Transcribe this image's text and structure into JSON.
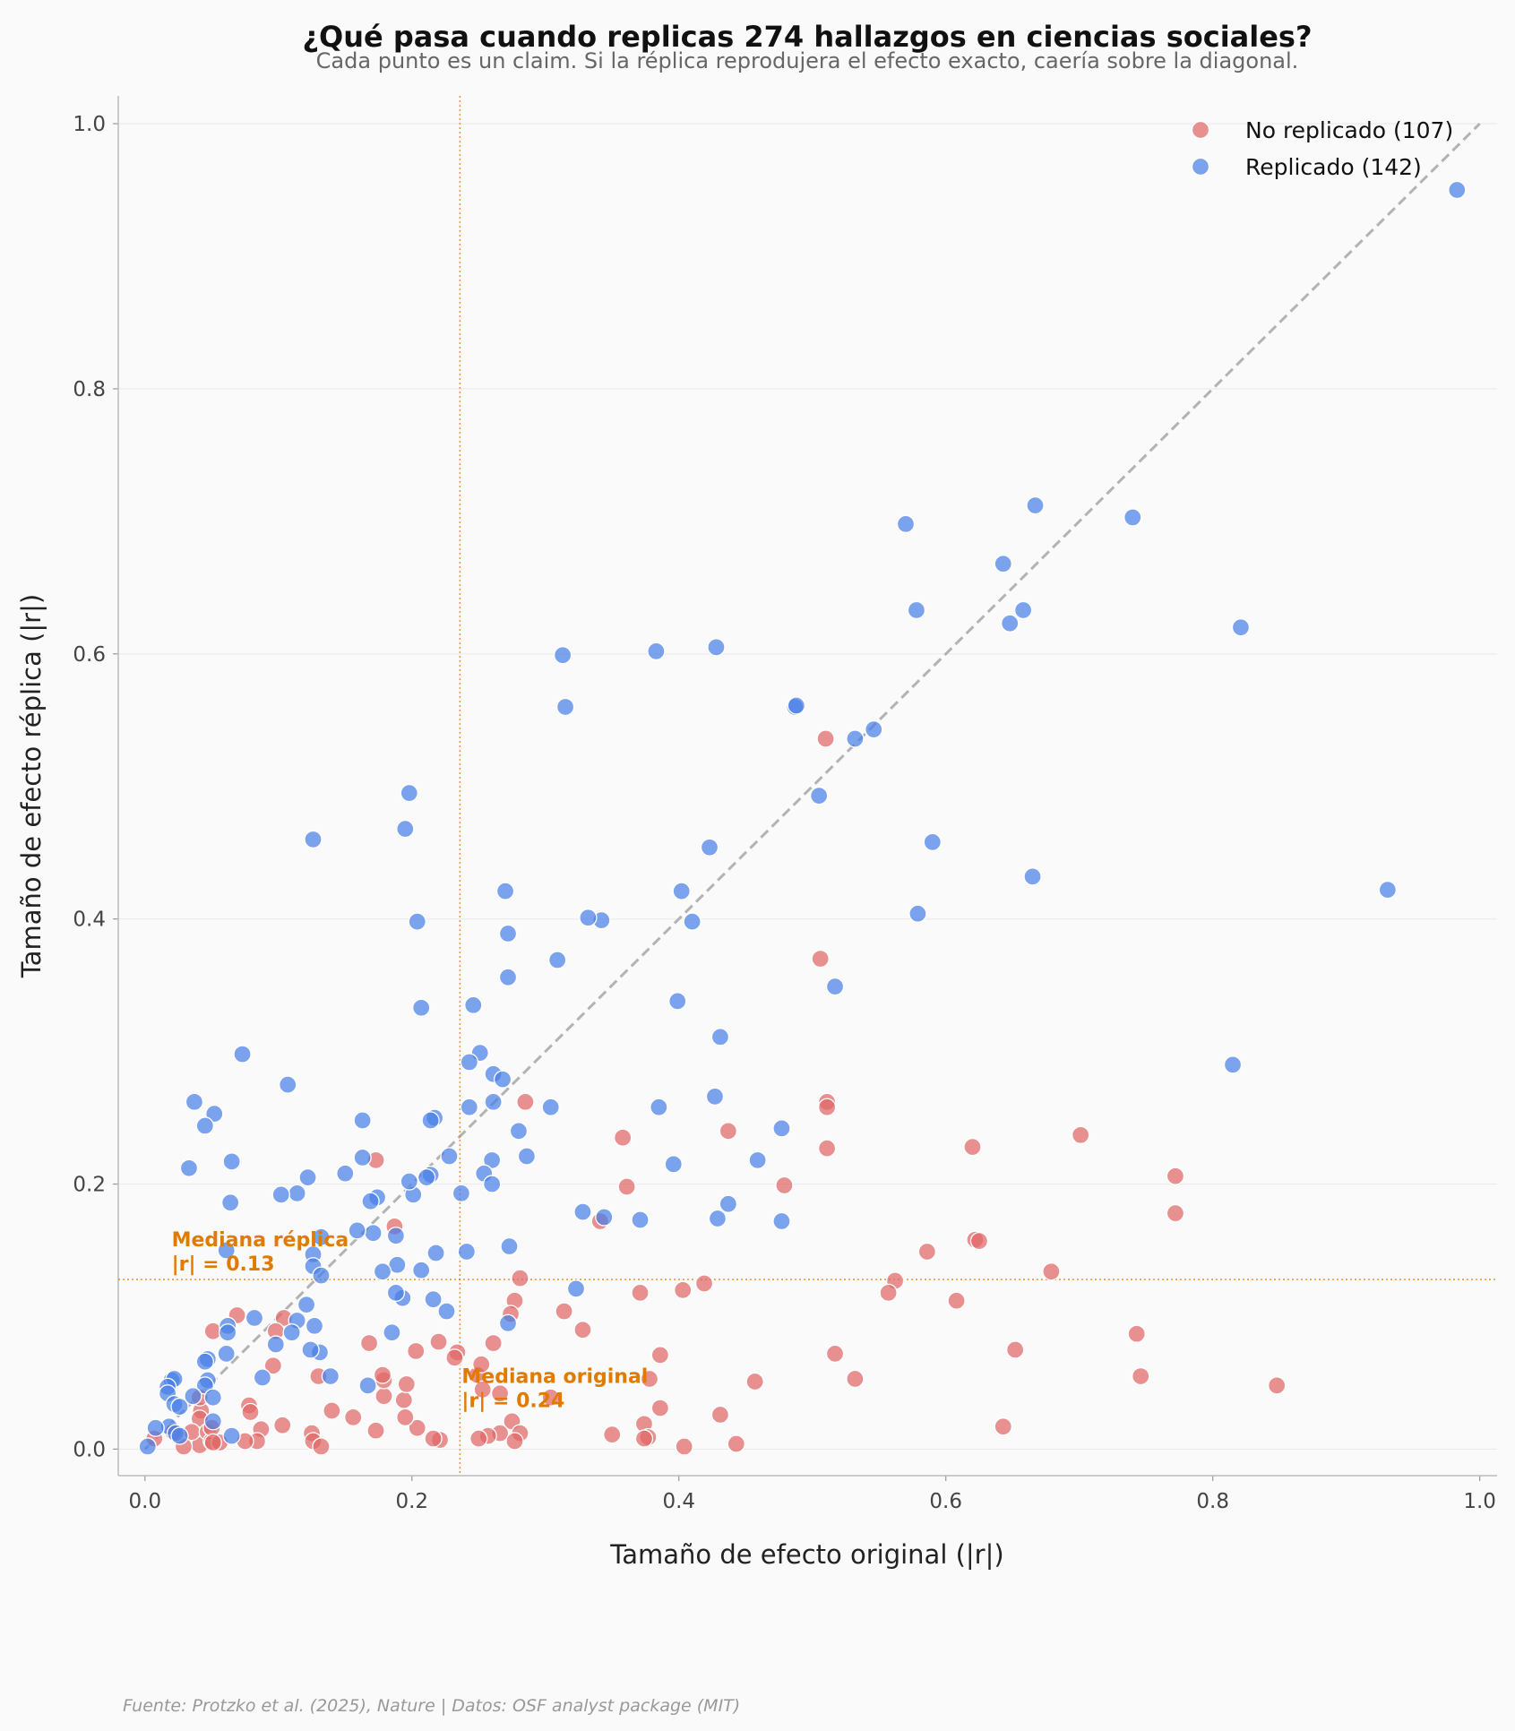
{
  "chart_data": {
    "type": "scatter",
    "title": "¿Qué pasa cuando replicas 274 hallazgos en ciencias sociales?",
    "subtitle": "Cada punto es un claim. Si la réplica reprodujera el efecto exacto, caería sobre la diagonal.",
    "xlabel": "Tamaño de efecto original (|r|)",
    "ylabel": "Tamaño de efecto réplica (|r|)",
    "xlim": [
      -0.02,
      1.013
    ],
    "ylim": [
      -0.02,
      1.021
    ],
    "xticks": [
      0.0,
      0.2,
      0.4,
      0.6,
      0.8,
      1.0
    ],
    "yticks": [
      0.0,
      0.2,
      0.4,
      0.6,
      0.8,
      1.0
    ],
    "xtick_labels": [
      "0.0",
      "0.2",
      "0.4",
      "0.6",
      "0.8",
      "1.0"
    ],
    "ytick_labels": [
      "0.0",
      "0.2",
      "0.4",
      "0.6",
      "0.8",
      "1.0"
    ],
    "grid": true,
    "legend_position": "top-right",
    "diagonal": {
      "from": [
        0,
        0
      ],
      "to": [
        1,
        1
      ],
      "color": "#b3b3b3"
    },
    "medians": {
      "x": 0.236,
      "y": 0.128,
      "color": "#e07b00",
      "x_label_1": "Mediana original",
      "x_label_2": "|r| = 0.24",
      "y_label_1": "Mediana réplica",
      "y_label_2": "|r| = 0.13"
    },
    "footer": "Fuente: Protzko et al. (2025), Nature | Datos: OSF analyst package (MIT)",
    "series": [
      {
        "name": "No replicado (107)",
        "color": "#e06666",
        "points": [
          [
            0.51,
            0.536
          ],
          [
            0.506,
            0.37
          ],
          [
            0.511,
            0.262
          ],
          [
            0.511,
            0.258
          ],
          [
            0.511,
            0.227
          ],
          [
            0.437,
            0.24
          ],
          [
            0.358,
            0.235
          ],
          [
            0.361,
            0.198
          ],
          [
            0.341,
            0.172
          ],
          [
            0.701,
            0.237
          ],
          [
            0.62,
            0.228
          ],
          [
            0.772,
            0.206
          ],
          [
            0.772,
            0.178
          ],
          [
            0.622,
            0.158
          ],
          [
            0.625,
            0.157
          ],
          [
            0.586,
            0.149
          ],
          [
            0.679,
            0.134
          ],
          [
            0.562,
            0.127
          ],
          [
            0.557,
            0.118
          ],
          [
            0.608,
            0.112
          ],
          [
            0.479,
            0.199
          ],
          [
            0.419,
            0.125
          ],
          [
            0.403,
            0.12
          ],
          [
            0.371,
            0.118
          ],
          [
            0.285,
            0.262
          ],
          [
            0.173,
            0.218
          ],
          [
            0.281,
            0.129
          ],
          [
            0.277,
            0.112
          ],
          [
            0.274,
            0.102
          ],
          [
            0.314,
            0.104
          ],
          [
            0.328,
            0.09
          ],
          [
            0.187,
            0.168
          ],
          [
            0.743,
            0.087
          ],
          [
            0.652,
            0.075
          ],
          [
            0.517,
            0.072
          ],
          [
            0.386,
            0.071
          ],
          [
            0.746,
            0.055
          ],
          [
            0.532,
            0.053
          ],
          [
            0.848,
            0.048
          ],
          [
            0.457,
            0.051
          ],
          [
            0.378,
            0.053
          ],
          [
            0.643,
            0.017
          ],
          [
            0.431,
            0.026
          ],
          [
            0.386,
            0.031
          ],
          [
            0.374,
            0.019
          ],
          [
            0.377,
            0.009
          ],
          [
            0.374,
            0.008
          ],
          [
            0.35,
            0.011
          ],
          [
            0.404,
            0.002
          ],
          [
            0.443,
            0.004
          ],
          [
            0.304,
            0.039
          ],
          [
            0.261,
            0.08
          ],
          [
            0.234,
            0.073
          ],
          [
            0.232,
            0.069
          ],
          [
            0.22,
            0.081
          ],
          [
            0.249,
            0.056
          ],
          [
            0.252,
            0.064
          ],
          [
            0.253,
            0.045
          ],
          [
            0.266,
            0.042
          ],
          [
            0.275,
            0.021
          ],
          [
            0.281,
            0.012
          ],
          [
            0.266,
            0.012
          ],
          [
            0.257,
            0.01
          ],
          [
            0.25,
            0.008
          ],
          [
            0.277,
            0.006
          ],
          [
            0.221,
            0.007
          ],
          [
            0.216,
            0.008
          ],
          [
            0.204,
            0.016
          ],
          [
            0.195,
            0.024
          ],
          [
            0.194,
            0.037
          ],
          [
            0.196,
            0.049
          ],
          [
            0.179,
            0.04
          ],
          [
            0.179,
            0.052
          ],
          [
            0.178,
            0.056
          ],
          [
            0.203,
            0.074
          ],
          [
            0.168,
            0.08
          ],
          [
            0.173,
            0.014
          ],
          [
            0.156,
            0.024
          ],
          [
            0.14,
            0.029
          ],
          [
            0.13,
            0.055
          ],
          [
            0.125,
            0.012
          ],
          [
            0.126,
            0.006
          ],
          [
            0.132,
            0.002
          ],
          [
            0.103,
            0.018
          ],
          [
            0.104,
            0.099
          ],
          [
            0.098,
            0.089
          ],
          [
            0.096,
            0.063
          ],
          [
            0.087,
            0.015
          ],
          [
            0.084,
            0.006
          ],
          [
            0.075,
            0.006
          ],
          [
            0.078,
            0.033
          ],
          [
            0.079,
            0.028
          ],
          [
            0.069,
            0.101
          ],
          [
            0.051,
            0.089
          ],
          [
            0.042,
            0.029
          ],
          [
            0.041,
            0.023
          ],
          [
            0.041,
            0.039
          ],
          [
            0.041,
            0.003
          ],
          [
            0.035,
            0.013
          ],
          [
            0.029,
            0.002
          ],
          [
            0.047,
            0.013
          ],
          [
            0.05,
            0.006
          ],
          [
            0.05,
            0.016
          ],
          [
            0.056,
            0.005
          ],
          [
            0.021,
            0.013
          ],
          [
            0.007,
            0.008
          ],
          [
            0.051,
            0.005
          ]
        ]
      },
      {
        "name": "Replicado (142)",
        "color": "#4a7fe8",
        "points": [
          [
            0.983,
            0.95
          ],
          [
            0.931,
            0.422
          ],
          [
            0.821,
            0.62
          ],
          [
            0.815,
            0.29
          ],
          [
            0.74,
            0.703
          ],
          [
            0.667,
            0.712
          ],
          [
            0.665,
            0.432
          ],
          [
            0.658,
            0.633
          ],
          [
            0.648,
            0.623
          ],
          [
            0.643,
            0.668
          ],
          [
            0.57,
            0.698
          ],
          [
            0.578,
            0.633
          ],
          [
            0.59,
            0.458
          ],
          [
            0.579,
            0.404
          ],
          [
            0.546,
            0.543
          ],
          [
            0.532,
            0.536
          ],
          [
            0.517,
            0.349
          ],
          [
            0.505,
            0.493
          ],
          [
            0.487,
            0.56
          ],
          [
            0.488,
            0.561
          ],
          [
            0.477,
            0.242
          ],
          [
            0.477,
            0.172
          ],
          [
            0.459,
            0.218
          ],
          [
            0.428,
            0.605
          ],
          [
            0.423,
            0.454
          ],
          [
            0.431,
            0.311
          ],
          [
            0.427,
            0.266
          ],
          [
            0.437,
            0.185
          ],
          [
            0.429,
            0.174
          ],
          [
            0.41,
            0.398
          ],
          [
            0.402,
            0.421
          ],
          [
            0.399,
            0.338
          ],
          [
            0.396,
            0.215
          ],
          [
            0.385,
            0.258
          ],
          [
            0.383,
            0.602
          ],
          [
            0.371,
            0.173
          ],
          [
            0.342,
            0.399
          ],
          [
            0.332,
            0.401
          ],
          [
            0.344,
            0.175
          ],
          [
            0.328,
            0.179
          ],
          [
            0.323,
            0.121
          ],
          [
            0.309,
            0.369
          ],
          [
            0.304,
            0.258
          ],
          [
            0.313,
            0.599
          ],
          [
            0.315,
            0.56
          ],
          [
            0.286,
            0.221
          ],
          [
            0.28,
            0.24
          ],
          [
            0.27,
            0.421
          ],
          [
            0.272,
            0.389
          ],
          [
            0.272,
            0.356
          ],
          [
            0.251,
            0.299
          ],
          [
            0.246,
            0.335
          ],
          [
            0.261,
            0.283
          ],
          [
            0.268,
            0.279
          ],
          [
            0.261,
            0.262
          ],
          [
            0.243,
            0.292
          ],
          [
            0.243,
            0.258
          ],
          [
            0.26,
            0.218
          ],
          [
            0.254,
            0.208
          ],
          [
            0.26,
            0.2
          ],
          [
            0.273,
            0.153
          ],
          [
            0.272,
            0.095
          ],
          [
            0.241,
            0.149
          ],
          [
            0.237,
            0.193
          ],
          [
            0.228,
            0.221
          ],
          [
            0.226,
            0.104
          ],
          [
            0.217,
            0.25
          ],
          [
            0.214,
            0.248
          ],
          [
            0.214,
            0.207
          ],
          [
            0.211,
            0.205
          ],
          [
            0.218,
            0.148
          ],
          [
            0.216,
            0.113
          ],
          [
            0.207,
            0.333
          ],
          [
            0.204,
            0.398
          ],
          [
            0.198,
            0.495
          ],
          [
            0.195,
            0.468
          ],
          [
            0.201,
            0.192
          ],
          [
            0.198,
            0.202
          ],
          [
            0.207,
            0.135
          ],
          [
            0.193,
            0.114
          ],
          [
            0.189,
            0.139
          ],
          [
            0.188,
            0.161
          ],
          [
            0.188,
            0.118
          ],
          [
            0.185,
            0.088
          ],
          [
            0.178,
            0.134
          ],
          [
            0.174,
            0.19
          ],
          [
            0.171,
            0.163
          ],
          [
            0.169,
            0.187
          ],
          [
            0.163,
            0.22
          ],
          [
            0.163,
            0.248
          ],
          [
            0.159,
            0.165
          ],
          [
            0.15,
            0.208
          ],
          [
            0.167,
            0.048
          ],
          [
            0.139,
            0.055
          ],
          [
            0.132,
            0.16
          ],
          [
            0.126,
            0.147
          ],
          [
            0.126,
            0.138
          ],
          [
            0.132,
            0.131
          ],
          [
            0.127,
            0.093
          ],
          [
            0.131,
            0.073
          ],
          [
            0.124,
            0.075
          ],
          [
            0.126,
            0.46
          ],
          [
            0.122,
            0.205
          ],
          [
            0.121,
            0.109
          ],
          [
            0.114,
            0.193
          ],
          [
            0.114,
            0.097
          ],
          [
            0.11,
            0.088
          ],
          [
            0.107,
            0.275
          ],
          [
            0.102,
            0.192
          ],
          [
            0.098,
            0.079
          ],
          [
            0.082,
            0.099
          ],
          [
            0.088,
            0.054
          ],
          [
            0.073,
            0.298
          ],
          [
            0.065,
            0.217
          ],
          [
            0.064,
            0.186
          ],
          [
            0.061,
            0.15
          ],
          [
            0.062,
            0.093
          ],
          [
            0.062,
            0.088
          ],
          [
            0.061,
            0.072
          ],
          [
            0.065,
            0.01
          ],
          [
            0.052,
            0.253
          ],
          [
            0.045,
            0.244
          ],
          [
            0.037,
            0.262
          ],
          [
            0.033,
            0.212
          ],
          [
            0.047,
            0.068
          ],
          [
            0.045,
            0.066
          ],
          [
            0.047,
            0.052
          ],
          [
            0.045,
            0.048
          ],
          [
            0.051,
            0.039
          ],
          [
            0.036,
            0.04
          ],
          [
            0.051,
            0.021
          ],
          [
            0.02,
            0.052
          ],
          [
            0.022,
            0.053
          ],
          [
            0.017,
            0.047
          ],
          [
            0.017,
            0.042
          ],
          [
            0.022,
            0.034
          ],
          [
            0.026,
            0.032
          ],
          [
            0.018,
            0.017
          ],
          [
            0.008,
            0.016
          ],
          [
            0.023,
            0.012
          ],
          [
            0.026,
            0.01
          ],
          [
            0.002,
            0.002
          ]
        ]
      }
    ]
  }
}
